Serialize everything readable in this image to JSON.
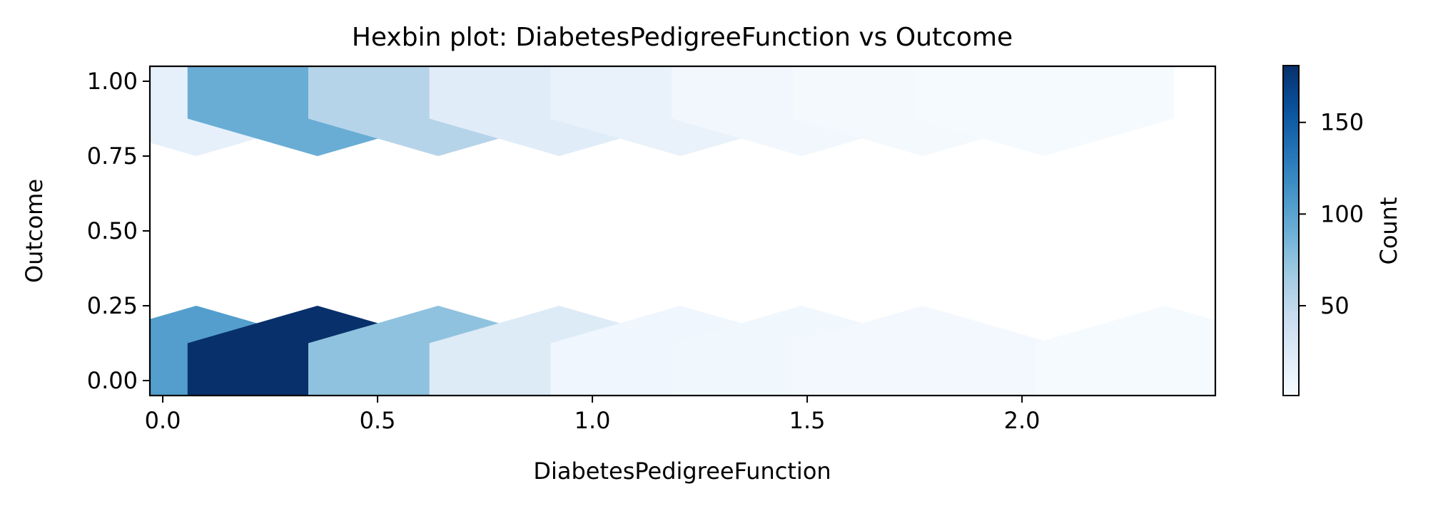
{
  "chart_data": {
    "type": "heatmap",
    "title": "Hexbin plot: DiabetesPedigreeFunction vs Outcome",
    "xlabel": "DiabetesPedigreeFunction",
    "ylabel": "Outcome",
    "xlim": [
      -0.03,
      2.45
    ],
    "ylim": [
      -0.05,
      1.05
    ],
    "xticks": [
      0.0,
      0.5,
      1.0,
      1.5,
      2.0
    ],
    "xtick_labels": [
      "0.0",
      "0.5",
      "1.0",
      "1.5",
      "2.0"
    ],
    "yticks": [
      0.0,
      0.25,
      0.5,
      0.75,
      1.0
    ],
    "ytick_labels": [
      "0.00",
      "0.25",
      "0.50",
      "0.75",
      "1.00"
    ],
    "colorbar": {
      "label": "Count",
      "range": [
        1,
        181
      ],
      "ticks": [
        50,
        100,
        150
      ],
      "tick_labels": [
        "50",
        "100",
        "150"
      ],
      "colormap": "Blues"
    },
    "bins": [
      {
        "x": 0.078,
        "y": 1.0,
        "count": 16
      },
      {
        "x": 0.36,
        "y": 1.0,
        "count": 92
      },
      {
        "x": 0.641,
        "y": 1.0,
        "count": 55
      },
      {
        "x": 0.923,
        "y": 1.0,
        "count": 22
      },
      {
        "x": 1.205,
        "y": 1.0,
        "count": 14
      },
      {
        "x": 1.487,
        "y": 1.0,
        "count": 6
      },
      {
        "x": 1.769,
        "y": 1.0,
        "count": 4
      },
      {
        "x": 2.051,
        "y": 1.0,
        "count": 3
      },
      {
        "x": 0.078,
        "y": 0.0,
        "count": 104
      },
      {
        "x": 0.36,
        "y": 0.0,
        "count": 181
      },
      {
        "x": 0.641,
        "y": 0.0,
        "count": 75
      },
      {
        "x": 0.923,
        "y": 0.0,
        "count": 24
      },
      {
        "x": 1.205,
        "y": 0.0,
        "count": 8
      },
      {
        "x": 1.487,
        "y": 0.0,
        "count": 7
      },
      {
        "x": 1.769,
        "y": 0.0,
        "count": 5
      },
      {
        "x": 2.333,
        "y": 0.0,
        "count": 3
      }
    ],
    "grid": false,
    "legend": "none"
  }
}
